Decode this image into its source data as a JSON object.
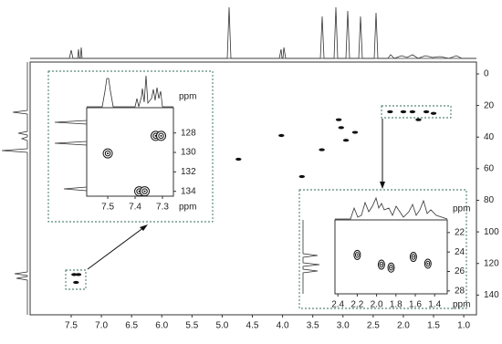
{
  "chart_data": [
    {
      "type": "contour",
      "x": [
        7.45,
        7.38,
        7.42,
        4.73,
        4.02,
        3.68,
        3.35,
        3.07,
        3.03,
        2.95,
        2.8,
        2.22,
        2.0,
        1.85,
        1.62,
        1.5,
        1.75
      ],
      "y": [
        127,
        127,
        132,
        54,
        39,
        65,
        48,
        29,
        34,
        42,
        37,
        24,
        24,
        24,
        24,
        25,
        29
      ],
      "xlim": [
        8.18,
        0.79
      ],
      "ylim": [
        -7.5,
        152.5
      ],
      "xticks": [
        7.5,
        {
          "value": 7,
          "label": "7.0"
        },
        6.5,
        {
          "value": 6,
          "label": "6.0"
        },
        5.5,
        {
          "value": 5,
          "label": "5.0"
        },
        4.5,
        {
          "value": 4,
          "label": "4.0"
        },
        3.5,
        {
          "value": 3,
          "label": "3.0"
        },
        2.5,
        {
          "value": 2,
          "label": "2.0"
        },
        1.5,
        {
          "value": 1,
          "label": "1.0"
        }
      ],
      "yticks": [
        0,
        20,
        40,
        60,
        80,
        100,
        120,
        140
      ]
    },
    {
      "type": "contour",
      "x": [
        7.5,
        7.325,
        7.305,
        7.385,
        7.365
      ],
      "y": [
        130.1,
        128.3,
        128.3,
        134,
        134
      ],
      "xlim": [
        7.577,
        7.26
      ],
      "ylim": [
        125.4,
        134.5
      ],
      "xticks": [
        7.5,
        7.4,
        7.3
      ],
      "yticks": [
        128,
        130,
        132,
        134
      ],
      "xlabel": "ppm",
      "ylabel": "ppm"
    },
    {
      "type": "contour",
      "x": [
        2.2,
        1.95,
        1.85,
        1.62,
        1.47
      ],
      "y": [
        24.3,
        25.3,
        25.6,
        24.5,
        25.2
      ],
      "xlim": [
        2.43,
        1.27
      ],
      "ylim": [
        20.7,
        28.3
      ],
      "xticks": [
        2.4,
        2.2,
        {
          "value": 2,
          "label": "2.0"
        },
        1.8,
        1.6,
        1.4
      ],
      "yticks": [
        22,
        24,
        26,
        28
      ],
      "xlabel": "ppm",
      "ylabel": "ppm"
    }
  ]
}
